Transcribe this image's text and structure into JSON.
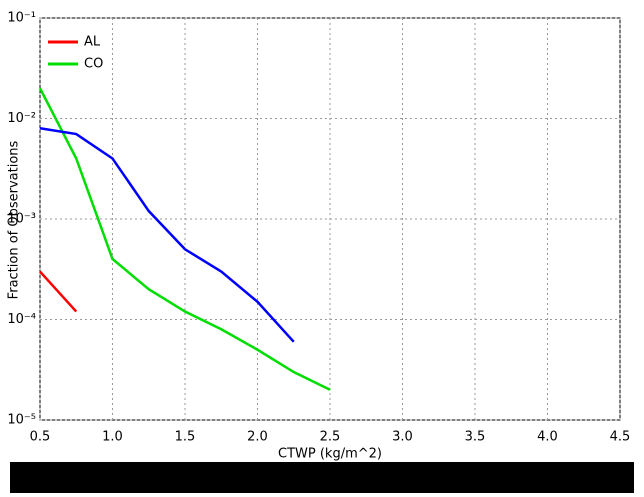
{
  "chart_data": {
    "type": "line",
    "xlabel": "CTWP (kg/m^2)",
    "ylabel": "Fraction of Observations",
    "log_y": true,
    "grid": true,
    "legend": "upper left",
    "xlim": [
      0.5,
      4.5
    ],
    "xticks": [
      0.5,
      {
        "value": 1,
        "label": "1.0"
      },
      1.5,
      {
        "value": 2,
        "label": "2.0"
      },
      2.5,
      {
        "value": 3,
        "label": "3.0"
      },
      3.5,
      {
        "value": 4,
        "label": "4.0"
      },
      4.5
    ],
    "ylim": [
      1e-05,
      0.1
    ],
    "yticks": [
      {
        "value": 0.1,
        "label": "10⁻¹"
      },
      {
        "value": 0.01,
        "label": "10⁻²"
      },
      {
        "value": 0.001,
        "label": "10⁻³"
      },
      {
        "value": 0.0001,
        "label": "10⁻⁴"
      },
      {
        "value": 1e-05,
        "label": "10⁻⁵"
      }
    ],
    "x": [
      0.5,
      0.75,
      1.0,
      1.25,
      1.5,
      1.75,
      2.0,
      2.25,
      2.5
    ],
    "series": [
      {
        "name": "AL",
        "color": "#ff0000",
        "values": [
          0.0003,
          0.00012,
          null,
          null,
          null,
          null,
          null,
          null,
          null
        ]
      },
      {
        "name": "CO",
        "color": "#00dd00",
        "values": [
          0.02,
          0.004,
          0.0004,
          0.0002,
          0.00012,
          8e-05,
          5e-05,
          3e-05,
          2e-05
        ]
      },
      {
        "color": "#0000ff",
        "values": [
          0.008,
          0.007,
          0.004,
          0.0012,
          0.0005,
          0.0003,
          0.00015,
          6e-05,
          null
        ]
      }
    ]
  }
}
